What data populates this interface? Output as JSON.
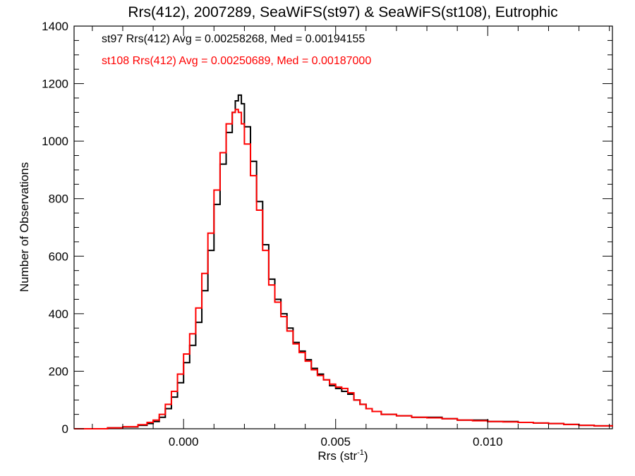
{
  "chart_data": {
    "type": "histogram-step",
    "title": "Rrs(412), 2007289, SeaWiFS(st97) & SeaWiFS(st108), Eutrophic",
    "xlabel_base": "Rrs (str",
    "xlabel_sup": "-1",
    "xlabel_close": ")",
    "ylabel": "Number of Observations",
    "xlim": [
      -0.0036,
      0.0141
    ],
    "ylim": [
      0,
      1400
    ],
    "xticks": [
      0.0,
      0.005,
      0.01
    ],
    "xtick_labels": [
      "0.000",
      "0.005",
      "0.010"
    ],
    "yticks": [
      0,
      200,
      400,
      600,
      800,
      1000,
      1200,
      1400
    ],
    "ytick_labels": [
      "0",
      "200",
      "400",
      "600",
      "800",
      "1000",
      "1200",
      "1400"
    ],
    "grid": false,
    "annotations": [
      {
        "text": "st97 Rrs(412) Avg = 0.00258268, Med = 0.00194155",
        "color": "#000000"
      },
      {
        "text": "st108 Rrs(412) Avg = 0.00250689, Med = 0.00187000",
        "color": "#ff0000"
      }
    ],
    "series": [
      {
        "color": "#000000",
        "x": [
          -0.0036,
          -0.0025,
          -0.002,
          -0.0015,
          -0.0012,
          -0.001,
          -0.0008,
          -0.0006,
          -0.0004,
          -0.0002,
          0.0,
          0.0002,
          0.0004,
          0.0006,
          0.0008,
          0.001,
          0.0012,
          0.0014,
          0.0016,
          0.0017,
          0.0018,
          0.0019,
          0.002,
          0.0022,
          0.0024,
          0.0026,
          0.0028,
          0.003,
          0.0032,
          0.0034,
          0.0036,
          0.0038,
          0.004,
          0.0042,
          0.0044,
          0.0046,
          0.0048,
          0.005,
          0.0052,
          0.0054,
          0.0056,
          0.0058,
          0.006,
          0.0062,
          0.0065,
          0.007,
          0.0075,
          0.008,
          0.0085,
          0.009,
          0.0095,
          0.01,
          0.0105,
          0.011,
          0.0115,
          0.012,
          0.0125,
          0.013,
          0.0135,
          0.0141
        ],
        "values": [
          0,
          3,
          6,
          12,
          18,
          25,
          40,
          70,
          110,
          160,
          230,
          290,
          370,
          480,
          620,
          780,
          920,
          1030,
          1100,
          1140,
          1160,
          1130,
          1050,
          930,
          790,
          640,
          520,
          450,
          400,
          350,
          300,
          270,
          240,
          210,
          190,
          170,
          150,
          140,
          130,
          120,
          100,
          85,
          70,
          60,
          50,
          45,
          40,
          40,
          35,
          30,
          30,
          25,
          25,
          22,
          20,
          18,
          15,
          12,
          10,
          8
        ]
      },
      {
        "color": "#ff0000",
        "x": [
          -0.0036,
          -0.0025,
          -0.002,
          -0.0015,
          -0.0012,
          -0.001,
          -0.0008,
          -0.0006,
          -0.0004,
          -0.0002,
          0.0,
          0.0002,
          0.0004,
          0.0006,
          0.0008,
          0.001,
          0.0012,
          0.0014,
          0.0016,
          0.0017,
          0.0018,
          0.0019,
          0.002,
          0.0022,
          0.0024,
          0.0026,
          0.0028,
          0.003,
          0.0032,
          0.0034,
          0.0036,
          0.0038,
          0.004,
          0.0042,
          0.0044,
          0.0046,
          0.0048,
          0.005,
          0.0052,
          0.0054,
          0.0056,
          0.0058,
          0.006,
          0.0062,
          0.0065,
          0.007,
          0.0075,
          0.008,
          0.0085,
          0.009,
          0.0095,
          0.01,
          0.0105,
          0.011,
          0.0115,
          0.012,
          0.0125,
          0.013,
          0.0135,
          0.0141
        ],
        "values": [
          0,
          3,
          7,
          14,
          22,
          30,
          50,
          85,
          130,
          190,
          260,
          330,
          420,
          540,
          680,
          830,
          960,
          1060,
          1100,
          1110,
          1100,
          1060,
          990,
          880,
          760,
          620,
          500,
          440,
          390,
          340,
          295,
          265,
          235,
          205,
          185,
          170,
          155,
          145,
          140,
          125,
          100,
          85,
          70,
          60,
          50,
          45,
          40,
          38,
          35,
          30,
          28,
          25,
          24,
          22,
          20,
          18,
          15,
          12,
          10,
          8
        ]
      }
    ]
  }
}
